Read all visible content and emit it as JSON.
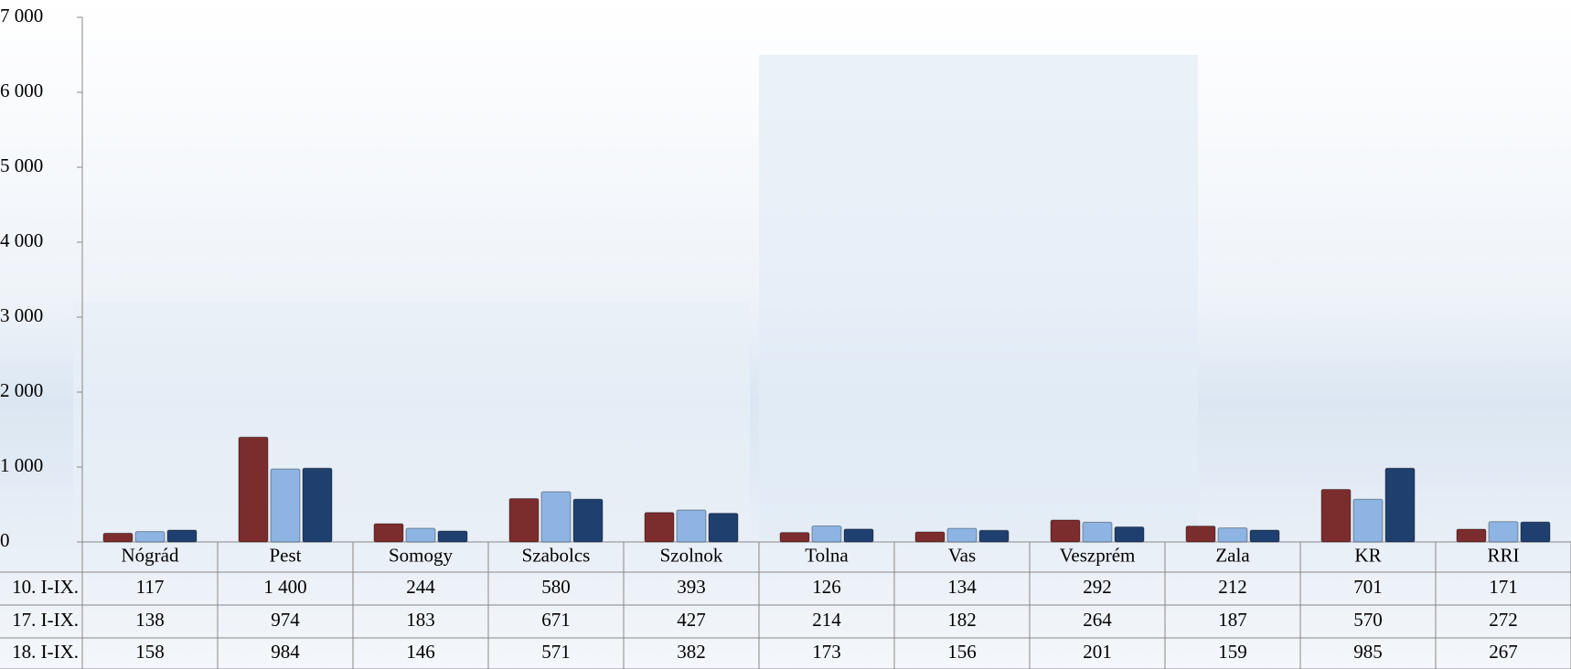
{
  "chart_data": {
    "type": "bar",
    "categories": [
      "Nógrád",
      "Pest",
      "Somogy",
      "Szabolcs",
      "Szolnok",
      "Tolna",
      "Vas",
      "Veszprém",
      "Zala",
      "KR",
      "RRI"
    ],
    "series": [
      {
        "name": "10. I-IX.",
        "color": "#7b2c2c",
        "values": [
          117,
          1400,
          244,
          580,
          393,
          126,
          134,
          292,
          212,
          701,
          171
        ],
        "value_labels": [
          "117",
          "1 400",
          "244",
          "580",
          "393",
          "126",
          "134",
          "292",
          "212",
          "701",
          "171"
        ]
      },
      {
        "name": "17. I-IX.",
        "color": "#8db4e2",
        "values": [
          138,
          974,
          183,
          671,
          427,
          214,
          182,
          264,
          187,
          570,
          272
        ]
      },
      {
        "name": "18. I-IX.",
        "color": "#1f3f6e",
        "values": [
          158,
          984,
          146,
          571,
          382,
          173,
          156,
          201,
          159,
          985,
          267
        ]
      }
    ],
    "ylim": [
      0,
      7000
    ],
    "yticks": [
      {
        "value": 0,
        "label": "0"
      },
      {
        "value": 1000,
        "label": "1 000"
      },
      {
        "value": 2000,
        "label": "2 000"
      },
      {
        "value": 3000,
        "label": "3 000"
      },
      {
        "value": 4000,
        "label": "4 000"
      },
      {
        "value": 5000,
        "label": "5 000"
      },
      {
        "value": 6000,
        "label": "6 000"
      },
      {
        "value": 7000,
        "label": "7 000"
      }
    ],
    "grid": false
  }
}
